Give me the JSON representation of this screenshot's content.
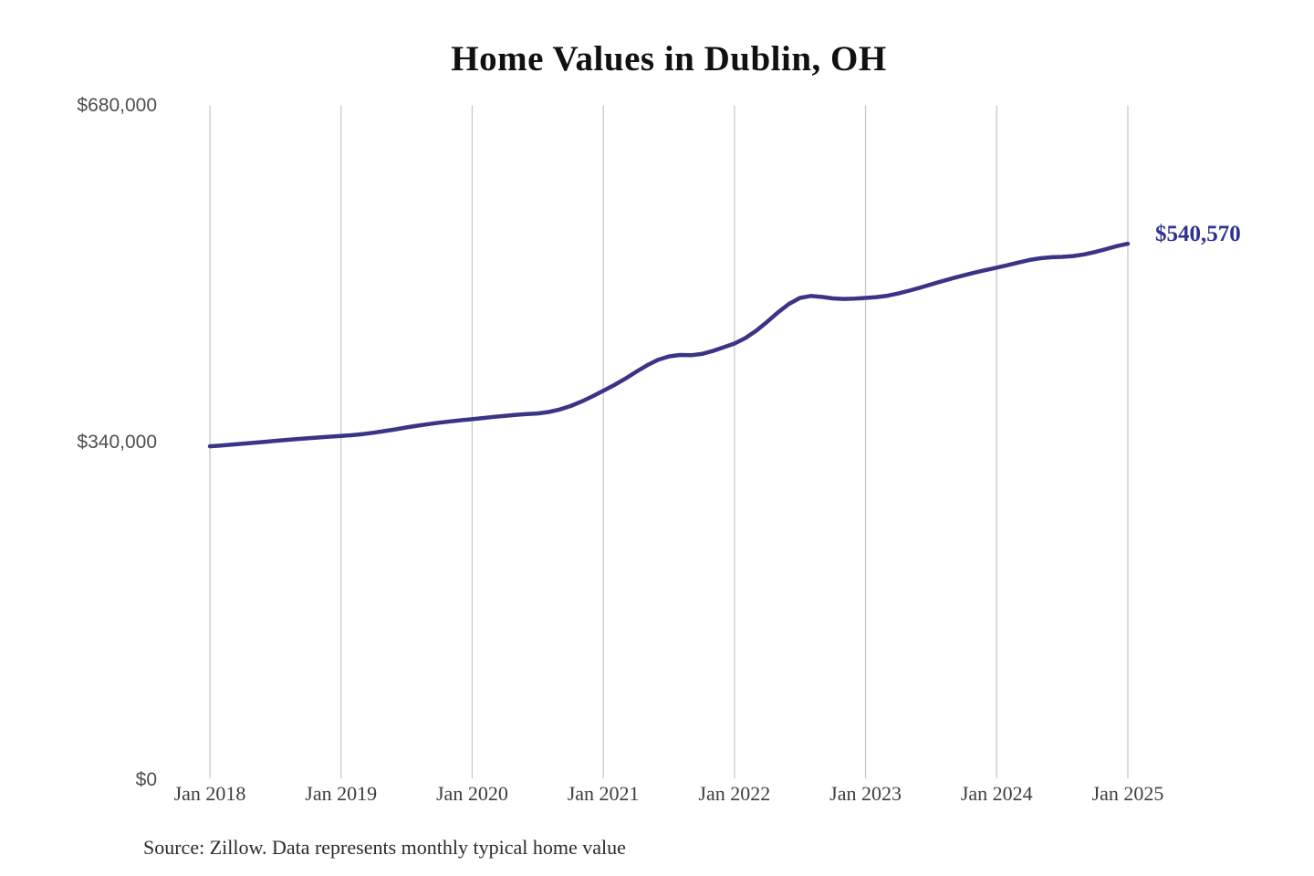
{
  "page_title": "Home Values in Dublin, OH",
  "annotation": {
    "end_label": "$540,570"
  },
  "source": "Source: Zillow. Data represents monthly typical home value",
  "colors": {
    "line": "#3b3486",
    "end_label_text": "#2e3192",
    "gridline": "#c9c9c9",
    "title_text": "#111111",
    "y_tick_text": "#4e4e4e",
    "x_tick_text": "#3d3d3d",
    "source_text": "#2b2b2b",
    "background": "#ffffff"
  },
  "chart_data": {
    "type": "line",
    "title": "Home Values in Dublin, OH",
    "series_name": "Monthly typical home value",
    "unit": "USD",
    "xlabel": "",
    "ylabel": "",
    "ylim": [
      0,
      680000
    ],
    "grid": "vertical-only",
    "legend": "none",
    "x_tick_labels": [
      "Jan 2018",
      "Jan 2019",
      "Jan 2020",
      "Jan 2021",
      "Jan 2022",
      "Jan 2023",
      "Jan 2024",
      "Jan 2025"
    ],
    "y_ticks": [
      {
        "label": "$0",
        "value": 0
      },
      {
        "label": "$340,000",
        "value": 340000
      },
      {
        "label": "$680,000",
        "value": 680000
      }
    ],
    "x_monthly_start": "2018-01",
    "x_monthly_end": "2025-01",
    "final_value": 540570,
    "end_label": "$540,570",
    "monthly_values": [
      336500,
      337300,
      338200,
      339100,
      340000,
      341000,
      342000,
      342900,
      343800,
      344600,
      345400,
      346200,
      346900,
      347700,
      348800,
      350200,
      351800,
      353600,
      355500,
      357200,
      358800,
      360300,
      361600,
      362800,
      363800,
      365000,
      366200,
      367200,
      368200,
      369000,
      369600,
      371000,
      373500,
      377000,
      381500,
      386800,
      392500,
      398200,
      404500,
      411500,
      418000,
      423500,
      427000,
      428500,
      428200,
      429500,
      432500,
      436200,
      440000,
      445500,
      453000,
      462000,
      471500,
      480000,
      486000,
      488000,
      487000,
      485500,
      485000,
      485300,
      486000,
      486800,
      488200,
      490500,
      493300,
      496400,
      499600,
      502800,
      505900,
      508800,
      511500,
      514100,
      516500,
      519000,
      521700,
      524200,
      526000,
      527000,
      527400,
      528200,
      529800,
      532200,
      535200,
      538200,
      540570
    ]
  }
}
